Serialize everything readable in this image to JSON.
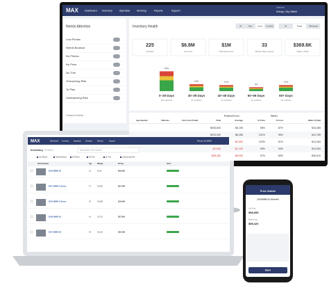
{
  "monitor": {
    "nav": {
      "logo": "MAX",
      "items": [
        "Dashboard",
        "Inventory",
        "Appraisal",
        "Stocking",
        "Reports",
        "Support"
      ],
      "dealer_label": "Dealership",
      "dealer": "Windy City BMW"
    },
    "attention": {
      "title": "Needs Attention",
      "items": [
        "Low Photos",
        "Needs Bookout",
        "No Photos",
        "No Price",
        "No Trim",
        "Overpricing Risk",
        "To Plan",
        "Underpricing Risk"
      ],
      "cleared": "Cleared Alerts"
    },
    "health": {
      "title": "Inventory Health",
      "filters": [
        "All",
        "New",
        "Used",
        "Certified"
      ],
      "channels": [
        "All",
        "Retail",
        "Wholesale"
      ],
      "kpis": [
        {
          "value": "225",
          "label": "Vehicles"
        },
        {
          "value": "$6.8M",
          "label": "Unit Cost"
        },
        {
          "value": "$1M",
          "label": "Potential Gross"
        },
        {
          "value": "33",
          "label": "Market Days Supply"
        },
        {
          "value": "$369.6K",
          "label": "Water (Total)"
        }
      ],
      "buckets": [
        {
          "label": "0–29 Days",
          "vehicles": "104 vehicles",
          "pct": 46,
          "pct_label": "46%"
        },
        {
          "label": "30–39 Days",
          "vehicles": "37 vehicles",
          "pct": 16,
          "pct_label": "16%"
        },
        {
          "label": "40–49 Days",
          "vehicles": "31 vehicles",
          "pct": 14,
          "pct_label": "14%"
        },
        {
          "label": "50–59 Days",
          "vehicles": "21 vehicles",
          "pct": 9,
          "pct_label": "9%"
        },
        {
          "label": "60+ Days",
          "vehicles": "32 vehicles",
          "pct": 14,
          "pct_label": "14%"
        }
      ]
    },
    "table": {
      "groups": [
        "Potential Gross",
        "Market"
      ],
      "headers": [
        "Age Bucket",
        "Vehicles",
        "Unit Cost (Total)",
        "Total",
        "Average",
        "% Price",
        "% Cost",
        "Water (Total)"
      ],
      "rows": [
        [
          null,
          null,
          null,
          "$545,800",
          "$6,195",
          "98%",
          "87%",
          "$18,485"
        ],
        [
          null,
          null,
          null,
          "$225,900",
          "$6,456",
          "101%",
          "96%",
          "$10,785"
        ],
        [
          null,
          null,
          null,
          "-$28,900",
          "-$2,650",
          "103%",
          "91%",
          "$13,463"
        ],
        [
          null,
          null,
          null,
          "-$1,640",
          "-$1,100",
          "99%",
          "93%",
          "$13,590"
        ],
        [
          null,
          null,
          null,
          "-$38,450",
          "-$8,900",
          "97%",
          "89%",
          "$36,510"
        ]
      ]
    }
  },
  "laptop": {
    "nav": {
      "logo": "MAX",
      "items": [
        "Dashboard",
        "Inventory",
        "Appraisal",
        "Stocking",
        "Reports",
        "Support"
      ],
      "dealer": "Windy City BMW"
    },
    "title": "Inventory",
    "count": "78 vehicles",
    "search": "Quick Search (VIN, Stock #)",
    "chips": [
      "Low Photos",
      "Needs Bookout",
      "No Photos",
      "No Price",
      "No Trim",
      "Underpricing Risk"
    ],
    "headers": [
      "Vehicle Details",
      "Age",
      "Mileage",
      "Pricing",
      "Alerts"
    ],
    "rows": [
      {
        "name": "2019 BMW X5",
        "age": "12",
        "miles": "8,214",
        "price": "$58,995"
      },
      {
        "name": "2017 BMW 3 Series",
        "age": "27",
        "miles": "31,540",
        "price": "$24,495"
      },
      {
        "name": "2016 BMW 3 Series",
        "age": "34",
        "miles": "42,008",
        "price": "$19,995"
      },
      {
        "name": "2018 BMW X1",
        "age": "41",
        "miles": "22,716",
        "price": "$27,850"
      },
      {
        "name": "2017 BMW X3",
        "age": "63",
        "miles": "36,102",
        "price": "$26,490"
      }
    ]
  },
  "phone": {
    "title": "Price Vehicle",
    "vehicle": "2019 BMW X5 xDrive40i",
    "fields": [
      "List Price",
      "$58,995",
      "Market Avg",
      "$59,420"
    ],
    "button": "Save"
  }
}
